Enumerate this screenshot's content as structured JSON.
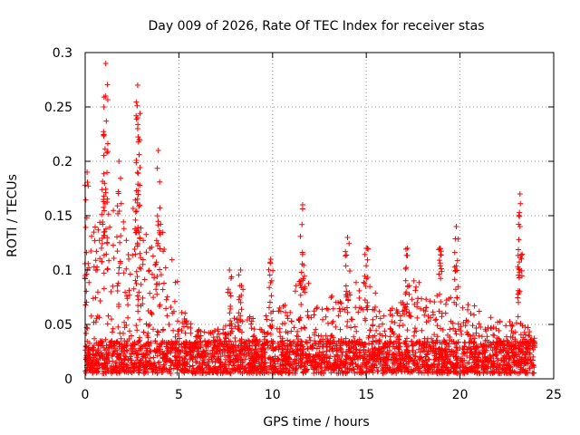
{
  "chart_data": {
    "type": "scatter",
    "title": "Day 009 of 2026, Rate Of TEC Index for receiver stas",
    "xlabel": "GPS time / hours",
    "ylabel": "ROTI / TECUs",
    "xlim": [
      0,
      25
    ],
    "ylim": [
      0,
      0.3
    ],
    "xticks": [
      0,
      5,
      10,
      15,
      20,
      25
    ],
    "yticks": [
      0,
      0.05,
      0.1,
      0.15,
      0.2,
      0.25,
      0.3
    ],
    "xtick_labels": [
      "0",
      "5",
      "10",
      "15",
      "20",
      "25"
    ],
    "ytick_labels": [
      "0",
      "0.05",
      "0.1",
      "0.15",
      "0.2",
      "0.25",
      "0.3"
    ],
    "grid": true,
    "marker": "+",
    "marker_color": "#ff0000",
    "x_data_range": [
      0,
      24
    ],
    "peaks": [
      {
        "x": 0.1,
        "y": 0.19
      },
      {
        "x": 1.1,
        "y": 0.29
      },
      {
        "x": 1.1,
        "y": 0.26
      },
      {
        "x": 1.0,
        "y": 0.25
      },
      {
        "x": 2.8,
        "y": 0.27
      },
      {
        "x": 2.8,
        "y": 0.24
      },
      {
        "x": 2.8,
        "y": 0.23
      },
      {
        "x": 3.9,
        "y": 0.21
      },
      {
        "x": 1.8,
        "y": 0.2
      },
      {
        "x": 11.6,
        "y": 0.16
      },
      {
        "x": 23.2,
        "y": 0.17
      },
      {
        "x": 23.2,
        "y": 0.14
      },
      {
        "x": 19.8,
        "y": 0.14
      },
      {
        "x": 14.0,
        "y": 0.13
      },
      {
        "x": 15.0,
        "y": 0.12
      },
      {
        "x": 17.2,
        "y": 0.12
      },
      {
        "x": 18.9,
        "y": 0.12
      },
      {
        "x": 9.9,
        "y": 0.11
      },
      {
        "x": 7.7,
        "y": 0.1
      },
      {
        "x": 8.3,
        "y": 0.1
      }
    ],
    "band_envelope": [
      {
        "x": 0,
        "y": 0.12
      },
      {
        "x": 0.5,
        "y": 0.14
      },
      {
        "x": 1,
        "y": 0.16
      },
      {
        "x": 1.5,
        "y": 0.15
      },
      {
        "x": 2,
        "y": 0.14
      },
      {
        "x": 2.5,
        "y": 0.16
      },
      {
        "x": 3,
        "y": 0.14
      },
      {
        "x": 3.5,
        "y": 0.12
      },
      {
        "x": 4,
        "y": 0.14
      },
      {
        "x": 4.5,
        "y": 0.12
      },
      {
        "x": 5,
        "y": 0.08
      },
      {
        "x": 5.5,
        "y": 0.05
      },
      {
        "x": 6,
        "y": 0.04
      },
      {
        "x": 7,
        "y": 0.04
      },
      {
        "x": 8,
        "y": 0.06
      },
      {
        "x": 9,
        "y": 0.05
      },
      {
        "x": 10,
        "y": 0.06
      },
      {
        "x": 11,
        "y": 0.07
      },
      {
        "x": 11.5,
        "y": 0.1
      },
      {
        "x": 12,
        "y": 0.08
      },
      {
        "x": 13,
        "y": 0.07
      },
      {
        "x": 14,
        "y": 0.08
      },
      {
        "x": 15,
        "y": 0.09
      },
      {
        "x": 16,
        "y": 0.06
      },
      {
        "x": 17,
        "y": 0.07
      },
      {
        "x": 17.5,
        "y": 0.09
      },
      {
        "x": 18,
        "y": 0.08
      },
      {
        "x": 19,
        "y": 0.07
      },
      {
        "x": 20,
        "y": 0.07
      },
      {
        "x": 21,
        "y": 0.06
      },
      {
        "x": 22,
        "y": 0.05
      },
      {
        "x": 23,
        "y": 0.05
      },
      {
        "x": 24,
        "y": 0.04
      }
    ]
  }
}
